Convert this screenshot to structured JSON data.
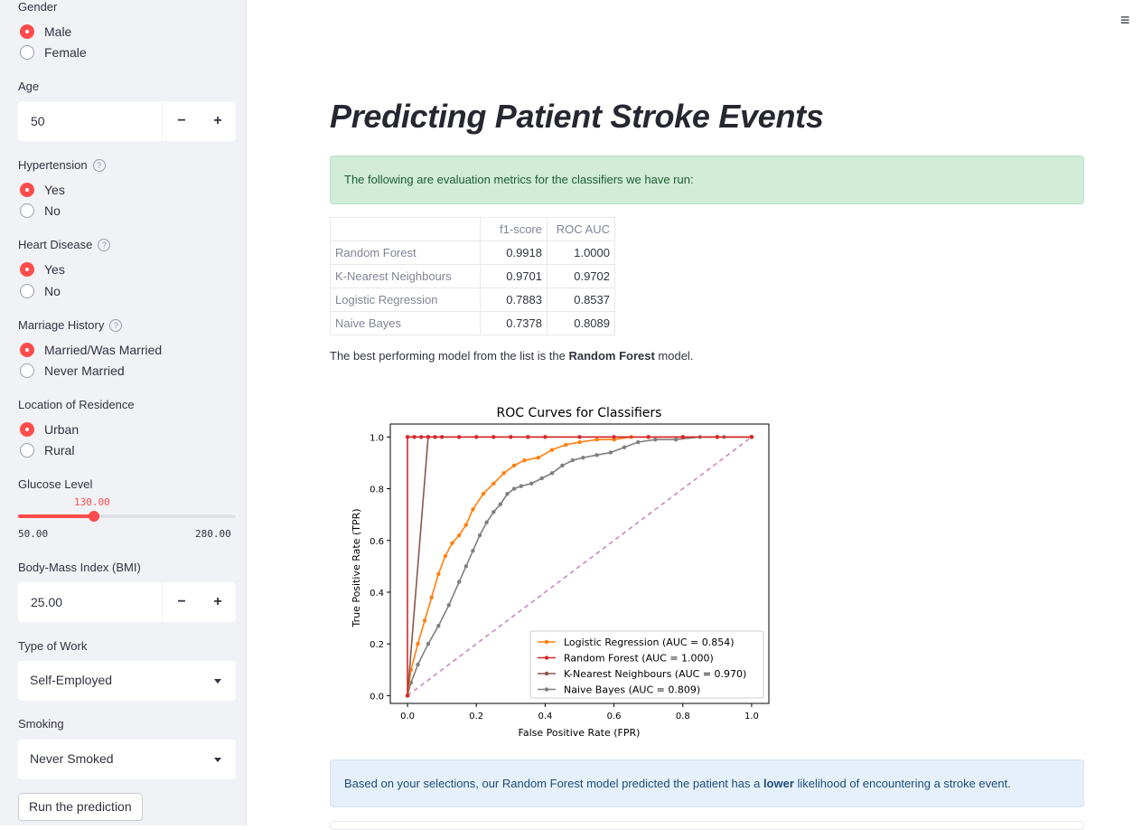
{
  "sidebar": {
    "gender": {
      "label": "Gender",
      "options": [
        "Male",
        "Female"
      ],
      "selected": "Male"
    },
    "age": {
      "label": "Age",
      "value": "50",
      "minus": "−",
      "plus": "+"
    },
    "hypertension": {
      "label": "Hypertension",
      "help": "?",
      "options": [
        "Yes",
        "No"
      ],
      "selected": "Yes"
    },
    "heart_disease": {
      "label": "Heart Disease",
      "help": "?",
      "options": [
        "Yes",
        "No"
      ],
      "selected": "Yes"
    },
    "marriage": {
      "label": "Marriage History",
      "help": "?",
      "options": [
        "Married/Was Married",
        "Never Married"
      ],
      "selected": "Married/Was Married"
    },
    "residence": {
      "label": "Location of Residence",
      "options": [
        "Urban",
        "Rural"
      ],
      "selected": "Urban"
    },
    "glucose": {
      "label": "Glucose Level",
      "value": "130.00",
      "min": "50.00",
      "max": "280.00",
      "fraction": 0.3478
    },
    "bmi": {
      "label": "Body-Mass Index (BMI)",
      "value": "25.00",
      "minus": "−",
      "plus": "+"
    },
    "work": {
      "label": "Type of Work",
      "value": "Self-Employed"
    },
    "smoking": {
      "label": "Smoking",
      "value": "Never Smoked"
    },
    "run_button": "Run the prediction"
  },
  "main": {
    "menu_icon": "≡",
    "title": "Predicting Patient Stroke Events",
    "success_msg": "The following are evaluation metrics for the classifiers we have run:",
    "table": {
      "headers": [
        "",
        "f1-score",
        "ROC AUC"
      ],
      "rows": [
        [
          "Random Forest",
          "0.9918",
          "1.0000"
        ],
        [
          "K-Nearest Neighbours",
          "0.9701",
          "0.9702"
        ],
        [
          "Logistic Regression",
          "0.7883",
          "0.8537"
        ],
        [
          "Naive Bayes",
          "0.7378",
          "0.8089"
        ]
      ]
    },
    "best_pre": "The best performing model from the list is the ",
    "best_model": "Random Forest",
    "best_post": " model.",
    "info_pre": "Based on your selections, our Random Forest model predicted the patient has a ",
    "info_bold": "lower",
    "info_post": " likelihood of encountering a stroke event."
  },
  "chart_data": {
    "type": "line",
    "title": "ROC Curves for Classifiers",
    "xlabel": "False Positive Rate (FPR)",
    "ylabel": "True Positive Rate (TPR)",
    "xlim": [
      -0.05,
      1.05
    ],
    "ylim": [
      -0.03,
      1.05
    ],
    "xticks": [
      "0.0",
      "0.2",
      "0.4",
      "0.6",
      "0.8",
      "1.0"
    ],
    "yticks": [
      "0.0",
      "0.2",
      "0.4",
      "0.6",
      "0.8",
      "1.0"
    ],
    "legend_position": "lower-right",
    "series": [
      {
        "name": "Logistic Regression (AUC = 0.854)",
        "color": "#ff7f0e",
        "x": [
          0,
          0.01,
          0.03,
          0.05,
          0.07,
          0.09,
          0.11,
          0.13,
          0.15,
          0.17,
          0.19,
          0.22,
          0.25,
          0.28,
          0.31,
          0.34,
          0.38,
          0.42,
          0.46,
          0.5,
          0.55,
          0.6,
          0.65,
          0.7,
          0.8,
          0.9,
          1.0
        ],
        "y": [
          0,
          0.1,
          0.2,
          0.29,
          0.38,
          0.47,
          0.54,
          0.59,
          0.62,
          0.66,
          0.72,
          0.78,
          0.82,
          0.86,
          0.89,
          0.91,
          0.92,
          0.95,
          0.97,
          0.98,
          0.99,
          0.99,
          1.0,
          1.0,
          1.0,
          1.0,
          1.0
        ]
      },
      {
        "name": "Random Forest (AUC = 1.000)",
        "color": "#d62728",
        "x": [
          0,
          0,
          0.02,
          0.04,
          0.06,
          0.08,
          0.1,
          0.15,
          0.2,
          0.25,
          0.3,
          0.35,
          0.4,
          0.5,
          0.6,
          0.7,
          0.8,
          0.9,
          1.0
        ],
        "y": [
          0,
          1.0,
          1.0,
          1.0,
          1.0,
          1.0,
          1.0,
          1.0,
          1.0,
          1.0,
          1.0,
          1.0,
          1.0,
          1.0,
          1.0,
          1.0,
          1.0,
          1.0,
          1.0
        ]
      },
      {
        "name": "K-Nearest Neighbours (AUC = 0.970)",
        "color": "#8c564b",
        "x": [
          0,
          0.06,
          1.0
        ],
        "y": [
          0,
          1.0,
          1.0
        ]
      },
      {
        "name": "Naive Bayes (AUC = 0.809)",
        "color": "#7f7f7f",
        "x": [
          0,
          0.01,
          0.03,
          0.06,
          0.09,
          0.12,
          0.15,
          0.17,
          0.19,
          0.21,
          0.23,
          0.25,
          0.27,
          0.29,
          0.31,
          0.33,
          0.36,
          0.39,
          0.42,
          0.45,
          0.48,
          0.51,
          0.55,
          0.59,
          0.63,
          0.67,
          0.72,
          0.78,
          0.85,
          0.92,
          1.0
        ],
        "y": [
          0,
          0.05,
          0.12,
          0.2,
          0.27,
          0.35,
          0.44,
          0.5,
          0.56,
          0.62,
          0.67,
          0.71,
          0.74,
          0.78,
          0.8,
          0.81,
          0.82,
          0.84,
          0.86,
          0.89,
          0.91,
          0.92,
          0.93,
          0.94,
          0.96,
          0.98,
          0.99,
          0.99,
          1.0,
          1.0,
          1.0
        ]
      },
      {
        "name": "",
        "color": "#cc88c4",
        "dashed": true,
        "markers": false,
        "x": [
          0,
          1.0
        ],
        "y": [
          0,
          1.0
        ]
      }
    ]
  }
}
